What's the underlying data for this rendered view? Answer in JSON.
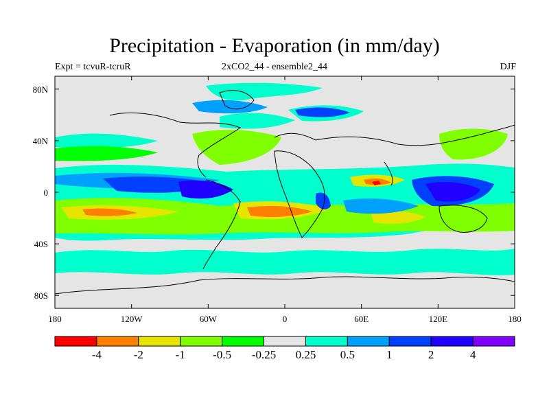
{
  "header": {
    "title": "Precipitation - Evaporation (in mm/day)",
    "left_subtitle": "Expt = tcvuR-tcruR",
    "center_subtitle": "2xCO2_44 - ensemble2_44",
    "right_subtitle": "DJF"
  },
  "axes": {
    "y_ticks": [
      {
        "lat": 80,
        "label": "80N"
      },
      {
        "lat": 40,
        "label": "40N"
      },
      {
        "lat": 0,
        "label": "0"
      },
      {
        "lat": -40,
        "label": "40S"
      },
      {
        "lat": -80,
        "label": "80S"
      }
    ],
    "x_ticks": [
      {
        "lon": -180,
        "label": "180"
      },
      {
        "lon": -120,
        "label": "120W"
      },
      {
        "lon": -60,
        "label": "60W"
      },
      {
        "lon": 0,
        "label": "0"
      },
      {
        "lon": 60,
        "label": "60E"
      },
      {
        "lon": 120,
        "label": "120E"
      },
      {
        "lon": 180,
        "label": "180"
      }
    ],
    "lat_range": [
      -90,
      90
    ],
    "lon_range": [
      -180,
      180
    ]
  },
  "colorbar": {
    "colors": [
      "#ff0000",
      "#ff7f00",
      "#e5e500",
      "#7fff00",
      "#00ff00",
      "#e5e5e5",
      "#00ffcc",
      "#00a0ff",
      "#0040ff",
      "#2000ff",
      "#8000ff"
    ],
    "labels": [
      "-4",
      "-2",
      "-1",
      "-0.5",
      "-0.25",
      "0.25",
      "0.5",
      "1",
      "2",
      "4"
    ]
  },
  "palette": {
    "background": "#e5e5e5",
    "coast": "#000000"
  }
}
